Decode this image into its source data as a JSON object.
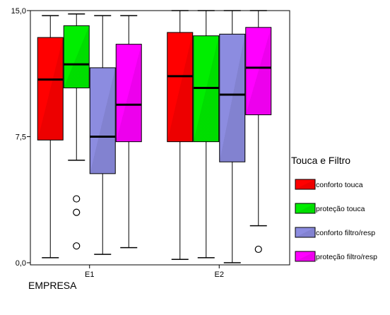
{
  "chart_data": {
    "type": "boxplot",
    "title": "",
    "xlabel": "EMPRESA",
    "ylabel": "",
    "ylim": [
      0,
      15
    ],
    "y_ticks": [
      0,
      7.5,
      15
    ],
    "y_tick_labels": [
      "0,0",
      "7,5",
      "15,0"
    ],
    "categories": [
      "E1",
      "E2"
    ],
    "legend": {
      "title": "Touca e Filtro",
      "position": "right"
    },
    "series": [
      {
        "name": "conforto touca",
        "color": "#ff0000",
        "boxes": [
          {
            "category": "E1",
            "min": 0.3,
            "q1": 7.3,
            "median": 10.9,
            "q3": 13.4,
            "max": 14.7,
            "outliers": []
          },
          {
            "category": "E2",
            "min": 0.2,
            "q1": 7.2,
            "median": 11.1,
            "q3": 13.7,
            "max": 15.0,
            "outliers": []
          }
        ]
      },
      {
        "name": "proteção touca",
        "color": "#00ee00",
        "boxes": [
          {
            "category": "E1",
            "min": 6.1,
            "q1": 10.4,
            "median": 11.8,
            "q3": 14.1,
            "max": 14.8,
            "outliers": [
              3.8,
              3.0,
              1.0
            ]
          },
          {
            "category": "E2",
            "min": 0.3,
            "q1": 7.2,
            "median": 10.4,
            "q3": 13.5,
            "max": 15.0,
            "outliers": []
          }
        ]
      },
      {
        "name": "conforto filtro/resp",
        "color": "#8c8ce0",
        "boxes": [
          {
            "category": "E1",
            "min": 0.5,
            "q1": 5.3,
            "median": 7.5,
            "q3": 11.6,
            "max": 14.7,
            "outliers": []
          },
          {
            "category": "E2",
            "min": 0.0,
            "q1": 6.0,
            "median": 10.0,
            "q3": 13.6,
            "max": 15.0,
            "outliers": []
          }
        ]
      },
      {
        "name": "proteção filtro/resp",
        "color": "#ff00ff",
        "boxes": [
          {
            "category": "E1",
            "min": 0.9,
            "q1": 7.2,
            "median": 9.4,
            "q3": 13.0,
            "max": 14.7,
            "outliers": []
          },
          {
            "category": "E2",
            "min": 2.2,
            "q1": 8.8,
            "median": 11.6,
            "q3": 14.0,
            "max": 15.0,
            "outliers": [
              0.8
            ]
          }
        ]
      }
    ]
  }
}
